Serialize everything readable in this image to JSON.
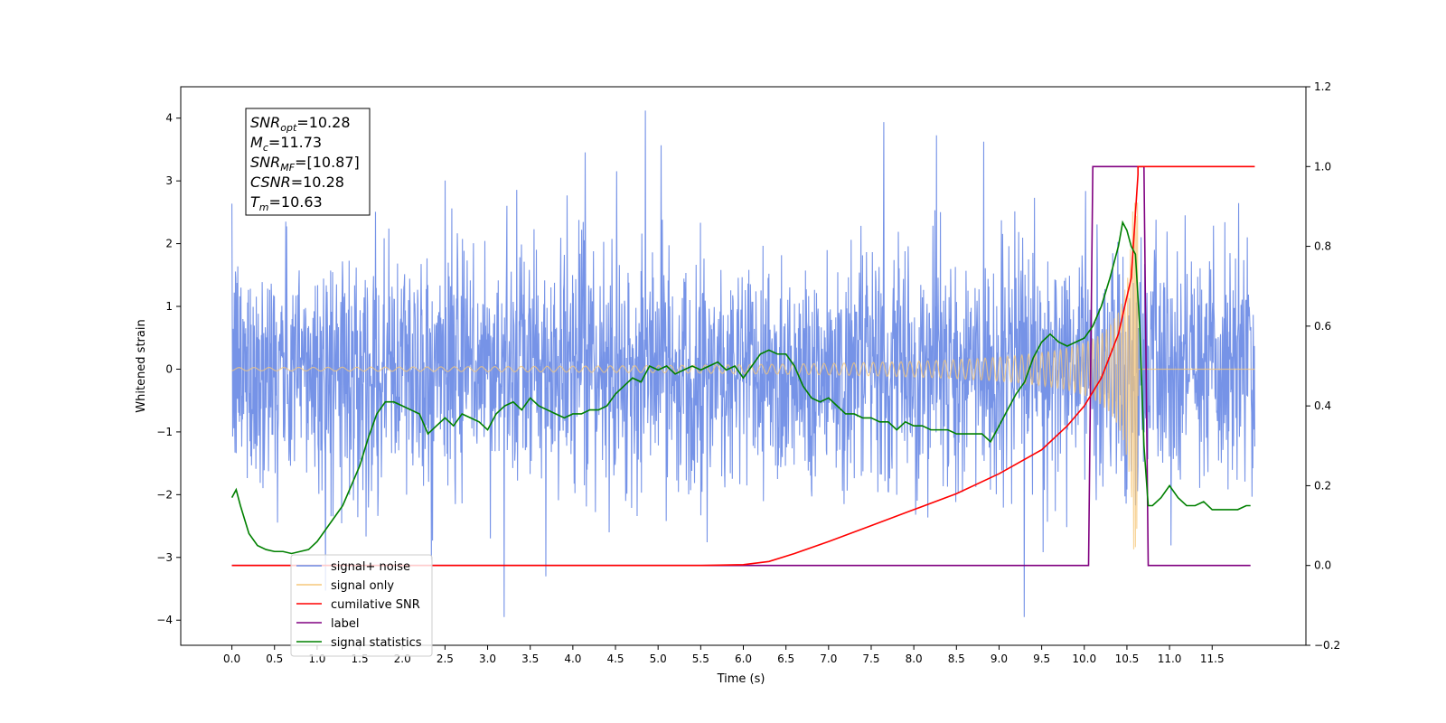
{
  "chart_data": {
    "type": "line",
    "xlabel": "Time (s)",
    "ylabel_left": "Whitened strain",
    "xlim": [
      -0.6,
      12.6
    ],
    "ylim_left": [
      -4.4,
      4.5
    ],
    "ylim_right": [
      -0.2,
      1.2
    ],
    "x_ticks": [
      0.0,
      0.5,
      1.0,
      1.5,
      2.0,
      2.5,
      3.0,
      3.5,
      4.0,
      4.5,
      5.0,
      5.5,
      6.0,
      6.5,
      7.0,
      7.5,
      8.0,
      8.5,
      9.0,
      9.5,
      10.0,
      10.5,
      11.0,
      11.5
    ],
    "x_tick_labels": [
      "0.0",
      "0.5",
      "1.0",
      "1.5",
      "2.0",
      "2.5",
      "3.0",
      "3.5",
      "4.0",
      "4.5",
      "5.0",
      "5.5",
      "6.0",
      "6.5",
      "7.0",
      "7.5",
      "8.0",
      "8.5",
      "9.0",
      "9.5",
      "10.0",
      "10.5",
      "11.0",
      "11.5"
    ],
    "y_left_ticks": [
      -4,
      -3,
      -2,
      -1,
      0,
      1,
      2,
      3,
      4
    ],
    "y_left_tick_labels": [
      "−4",
      "−3",
      "−2",
      "−1",
      "0",
      "1",
      "2",
      "3",
      "4"
    ],
    "y_right_ticks": [
      -0.2,
      0.0,
      0.2,
      0.4,
      0.6,
      0.8,
      1.0,
      1.2
    ],
    "y_right_tick_labels": [
      "−0.2",
      "0.0",
      "0.2",
      "0.4",
      "0.6",
      "0.8",
      "1.0",
      "1.2"
    ],
    "grid": false,
    "legend_position": "lower-left",
    "annotation": [
      {
        "sym": "SNR",
        "sub": "opt",
        "val": "=10.28"
      },
      {
        "sym": "M",
        "sub": "c",
        "val": "=11.73"
      },
      {
        "sym": "SNR",
        "sub": "MF",
        "val": "=[10.87]"
      },
      {
        "sym": "CSNR",
        "sub": "",
        "val": "=10.28"
      },
      {
        "sym": "T",
        "sub": "m",
        "val": "=10.63"
      }
    ],
    "noise_params": {
      "t_start": 0.0,
      "t_end": 12.0,
      "envelope": 1.6,
      "min": -3.95,
      "max": 4.12
    },
    "series": [
      {
        "name": "signal+ noise",
        "color": "#6f8de6",
        "axis": "left"
      },
      {
        "name": "signal only",
        "color": "#f5c77a",
        "axis": "left",
        "chirp": {
          "t_end": 10.63,
          "amplitude_at_end": 2.9,
          "base_amplitude": 0.02
        }
      },
      {
        "name": "cumilative SNR",
        "color": "#ff0000",
        "axis": "right",
        "x": [
          0.0,
          5.5,
          6.0,
          6.3,
          6.6,
          7.0,
          7.5,
          8.0,
          8.5,
          9.0,
          9.5,
          9.8,
          10.0,
          10.2,
          10.4,
          10.55,
          10.63,
          10.63,
          12.0
        ],
        "y": [
          0.0,
          0.0,
          0.002,
          0.01,
          0.03,
          0.06,
          0.1,
          0.14,
          0.18,
          0.23,
          0.29,
          0.35,
          0.4,
          0.47,
          0.58,
          0.72,
          0.98,
          1.0,
          1.0
        ]
      },
      {
        "name": "label",
        "color": "#800080",
        "axis": "right",
        "x": [
          0.0,
          10.05,
          10.1,
          10.7,
          10.75,
          11.95
        ],
        "y": [
          0.0,
          0.0,
          1.0,
          1.0,
          0.0,
          0.0
        ]
      },
      {
        "name": "signal statistics",
        "color": "#008000",
        "axis": "right",
        "x": [
          0.0,
          0.05,
          0.1,
          0.2,
          0.3,
          0.4,
          0.5,
          0.6,
          0.7,
          0.8,
          0.9,
          1.0,
          1.1,
          1.2,
          1.3,
          1.4,
          1.5,
          1.6,
          1.7,
          1.8,
          1.9,
          2.0,
          2.1,
          2.2,
          2.3,
          2.4,
          2.5,
          2.6,
          2.7,
          2.8,
          2.9,
          3.0,
          3.1,
          3.2,
          3.3,
          3.4,
          3.5,
          3.6,
          3.7,
          3.8,
          3.9,
          4.0,
          4.1,
          4.2,
          4.3,
          4.4,
          4.5,
          4.6,
          4.7,
          4.8,
          4.9,
          5.0,
          5.1,
          5.2,
          5.3,
          5.4,
          5.5,
          5.6,
          5.7,
          5.8,
          5.9,
          6.0,
          6.1,
          6.2,
          6.3,
          6.4,
          6.5,
          6.6,
          6.7,
          6.8,
          6.9,
          7.0,
          7.1,
          7.2,
          7.3,
          7.4,
          7.5,
          7.6,
          7.7,
          7.8,
          7.9,
          8.0,
          8.1,
          8.2,
          8.3,
          8.4,
          8.5,
          8.6,
          8.7,
          8.8,
          8.9,
          9.0,
          9.1,
          9.2,
          9.3,
          9.4,
          9.5,
          9.6,
          9.7,
          9.8,
          9.9,
          10.0,
          10.1,
          10.2,
          10.3,
          10.4,
          10.45,
          10.5,
          10.55,
          10.6,
          10.65,
          10.7,
          10.75,
          10.8,
          10.9,
          11.0,
          11.1,
          11.2,
          11.3,
          11.4,
          11.5,
          11.6,
          11.7,
          11.8,
          11.9,
          11.95
        ],
        "y": [
          0.17,
          0.19,
          0.15,
          0.08,
          0.05,
          0.04,
          0.035,
          0.035,
          0.03,
          0.035,
          0.04,
          0.06,
          0.09,
          0.12,
          0.15,
          0.2,
          0.25,
          0.32,
          0.38,
          0.41,
          0.41,
          0.4,
          0.39,
          0.38,
          0.33,
          0.35,
          0.37,
          0.35,
          0.38,
          0.37,
          0.36,
          0.34,
          0.38,
          0.4,
          0.41,
          0.39,
          0.42,
          0.4,
          0.39,
          0.38,
          0.37,
          0.38,
          0.38,
          0.39,
          0.39,
          0.4,
          0.43,
          0.45,
          0.47,
          0.46,
          0.5,
          0.49,
          0.5,
          0.48,
          0.49,
          0.5,
          0.49,
          0.5,
          0.51,
          0.49,
          0.5,
          0.47,
          0.5,
          0.53,
          0.54,
          0.53,
          0.53,
          0.5,
          0.45,
          0.42,
          0.41,
          0.42,
          0.4,
          0.38,
          0.38,
          0.37,
          0.37,
          0.36,
          0.36,
          0.34,
          0.36,
          0.35,
          0.35,
          0.34,
          0.34,
          0.34,
          0.33,
          0.33,
          0.33,
          0.33,
          0.31,
          0.35,
          0.39,
          0.43,
          0.46,
          0.52,
          0.56,
          0.58,
          0.56,
          0.55,
          0.56,
          0.57,
          0.6,
          0.65,
          0.72,
          0.8,
          0.86,
          0.84,
          0.8,
          0.78,
          0.6,
          0.3,
          0.15,
          0.15,
          0.17,
          0.2,
          0.17,
          0.15,
          0.15,
          0.16,
          0.14,
          0.14,
          0.14,
          0.14,
          0.15,
          0.15
        ]
      }
    ]
  }
}
